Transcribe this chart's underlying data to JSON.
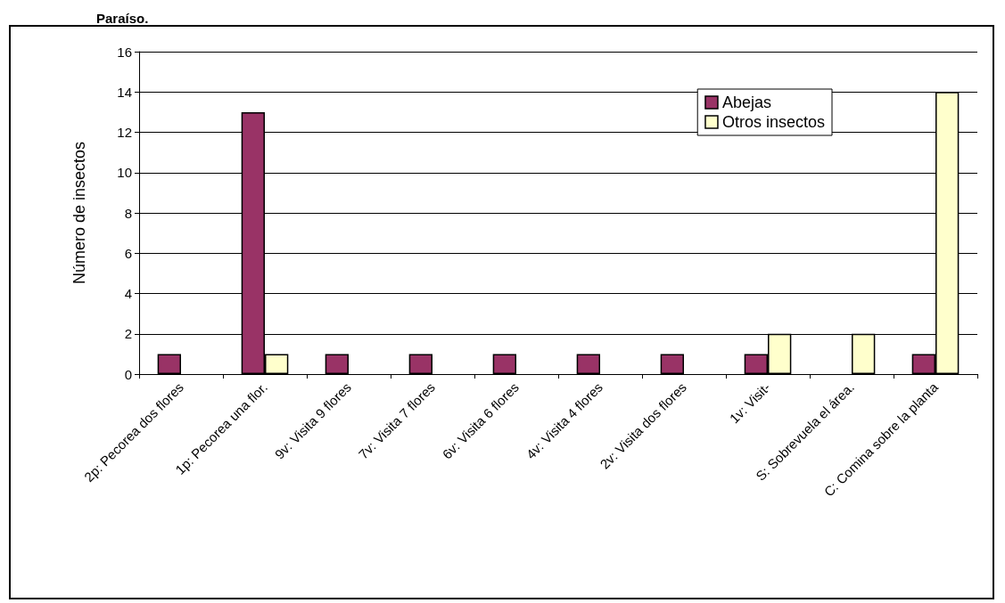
{
  "chart_data": {
    "type": "bar",
    "title": "Paraíso.",
    "ylabel": "Número de insectos",
    "categories": [
      "2p: Pecorea dos flores",
      "1p: Pecorea una flor.",
      "9v: Visita 9 flores",
      "7v: Visita 7 flores",
      "6v: Visita 6 flores",
      "4v: Visita 4 flores",
      "2v: Visita dos flores",
      "1v: Visit-",
      "S: Sobrevuela el área.",
      "C: Comina sobre la planta"
    ],
    "series": [
      {
        "name": "Abejas",
        "color": "#993366",
        "values": [
          1,
          13,
          1,
          1,
          1,
          1,
          1,
          1,
          null,
          1
        ]
      },
      {
        "name": "Otros insectos",
        "color": "#ffffcc",
        "values": [
          null,
          1,
          null,
          null,
          null,
          null,
          null,
          2,
          2,
          14
        ]
      }
    ],
    "ylim": [
      0,
      16
    ],
    "yticks": [
      0,
      2,
      4,
      6,
      8,
      10,
      12,
      14,
      16
    ],
    "grid": "y",
    "legend": "top right"
  }
}
